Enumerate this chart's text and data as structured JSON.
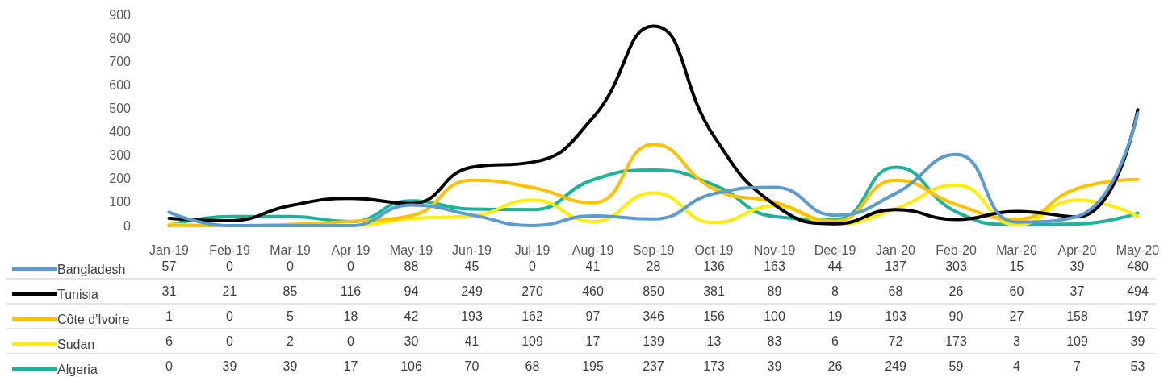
{
  "chart_data": {
    "type": "line",
    "categories": [
      "Jan-19",
      "Feb-19",
      "Mar-19",
      "Apr-19",
      "May-19",
      "Jun-19",
      "Jul-19",
      "Aug-19",
      "Sep-19",
      "Oct-19",
      "Nov-19",
      "Dec-19",
      "Jan-20",
      "Feb-20",
      "Mar-20",
      "Apr-20",
      "May-20"
    ],
    "series": [
      {
        "name": "Bangladesh",
        "color": "#5b9bd5",
        "values": [
          57,
          0,
          0,
          0,
          88,
          45,
          0,
          41,
          28,
          136,
          163,
          44,
          137,
          303,
          15,
          39,
          480
        ]
      },
      {
        "name": "Tunisia",
        "color": "#000000",
        "values": [
          31,
          21,
          85,
          116,
          94,
          249,
          270,
          460,
          850,
          381,
          89,
          8,
          68,
          26,
          60,
          37,
          494
        ]
      },
      {
        "name": "Côte d'Ivoire",
        "color": "#ffc000",
        "values": [
          1,
          0,
          5,
          18,
          42,
          193,
          162,
          97,
          346,
          156,
          100,
          19,
          193,
          90,
          27,
          158,
          197
        ]
      },
      {
        "name": "Sudan",
        "color": "#ffee00",
        "values": [
          6,
          0,
          2,
          0,
          30,
          41,
          109,
          17,
          139,
          13,
          83,
          6,
          72,
          173,
          3,
          109,
          39
        ]
      },
      {
        "name": "Algeria",
        "color": "#1cb39a",
        "values": [
          0,
          39,
          39,
          17,
          106,
          70,
          68,
          195,
          237,
          173,
          39,
          26,
          249,
          59,
          4,
          7,
          53
        ]
      }
    ],
    "ylim": [
      0,
      900
    ],
    "yticks": [
      0,
      100,
      200,
      300,
      400,
      500,
      600,
      700,
      800,
      900
    ],
    "grid": false,
    "legend": "bottom",
    "marker": "none",
    "line_style": "solid",
    "data_labels": true
  }
}
